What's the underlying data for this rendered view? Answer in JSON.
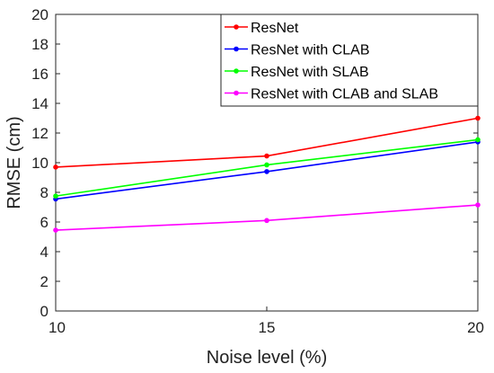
{
  "chart_data": {
    "type": "line",
    "title": "",
    "xlabel": "Noise level (%)",
    "ylabel": "RMSE (cm)",
    "x": [
      10,
      15,
      20
    ],
    "xlim": [
      10,
      20
    ],
    "ylim": [
      0,
      20
    ],
    "xticks": [
      10,
      15,
      20
    ],
    "yticks": [
      0,
      2,
      4,
      6,
      8,
      10,
      12,
      14,
      16,
      18,
      20
    ],
    "grid": false,
    "legend_position": "top-right",
    "series": [
      {
        "name": "ResNet",
        "color": "#ff0000",
        "values": [
          9.7,
          10.45,
          13.0
        ]
      },
      {
        "name": "ResNet with CLAB",
        "color": "#0000ff",
        "values": [
          7.55,
          9.4,
          11.4
        ]
      },
      {
        "name": "ResNet with SLAB",
        "color": "#00ff00",
        "values": [
          7.75,
          9.85,
          11.55
        ]
      },
      {
        "name": "ResNet with CLAB and SLAB",
        "color": "#ff00ff",
        "values": [
          5.45,
          6.1,
          7.15
        ]
      }
    ]
  }
}
